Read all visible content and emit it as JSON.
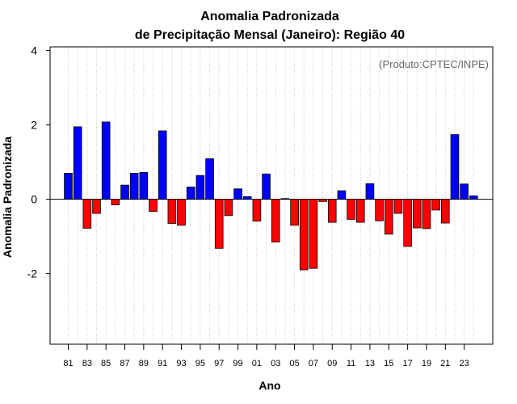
{
  "chart_data": {
    "type": "bar",
    "title": "Anomalia Padronizada",
    "subtitle": "de Precipitação Mensal (Janeiro): Região 40",
    "xlabel": "Ano",
    "ylabel": "Anomalia Padronizada",
    "source_note": "(Produto:CPTEC/INPE)",
    "ylim": [
      -3.9,
      4.1
    ],
    "yticks": [
      -2,
      0,
      2,
      4
    ],
    "ytick_labels": [
      "-2",
      "0",
      "2",
      "4"
    ],
    "years": [
      1981,
      1982,
      1983,
      1984,
      1985,
      1986,
      1987,
      1988,
      1989,
      1990,
      1991,
      1992,
      1993,
      1994,
      1995,
      1996,
      1997,
      1998,
      1999,
      2000,
      2001,
      2002,
      2003,
      2004,
      2005,
      2006,
      2007,
      2008,
      2009,
      2010,
      2011,
      2012,
      2013,
      2014,
      2015,
      2016,
      2017,
      2018,
      2019,
      2020,
      2021,
      2022,
      2023,
      2024
    ],
    "xtick_labels": [
      "81",
      "83",
      "85",
      "87",
      "89",
      "91",
      "93",
      "95",
      "97",
      "99",
      "01",
      "03",
      "05",
      "07",
      "09",
      "11",
      "13",
      "15",
      "17",
      "19",
      "21",
      "23"
    ],
    "values": [
      0.7,
      1.95,
      -0.78,
      -0.38,
      2.08,
      -0.15,
      0.38,
      0.7,
      0.72,
      -0.33,
      1.84,
      -0.65,
      -0.7,
      0.33,
      0.64,
      1.09,
      -1.32,
      -0.44,
      0.28,
      0.07,
      -0.59,
      0.68,
      -1.15,
      0.02,
      -0.7,
      -1.9,
      -1.86,
      -0.06,
      -0.62,
      0.23,
      -0.54,
      -0.62,
      0.42,
      -0.58,
      -0.94,
      -0.38,
      -1.27,
      -0.77,
      -0.79,
      -0.29,
      -0.64,
      1.74,
      0.41,
      0.09
    ],
    "colors": {
      "positive": "#0000ff",
      "negative": "#ff0000",
      "outline": "#000000"
    },
    "grid": "vertical dotted"
  }
}
